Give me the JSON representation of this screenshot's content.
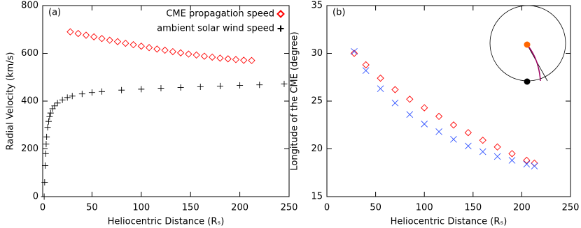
{
  "chart_data": [
    {
      "type": "scatter",
      "panel_label": "(a)",
      "xlabel": "Heliocentric Distance (Rₛ)",
      "ylabel": "Radial Velocity (km/s)",
      "xlim": [
        0,
        250
      ],
      "xticks": [
        0,
        50,
        100,
        150,
        200,
        250
      ],
      "ylim": [
        0,
        800
      ],
      "yticks": [
        0,
        200,
        400,
        600,
        800
      ],
      "legend": "upper right",
      "series": [
        {
          "name": "CME propagation speed",
          "color": "#ff0000",
          "marker": "diamond",
          "x": [
            28,
            36,
            44,
            52,
            60,
            68,
            76,
            84,
            92,
            100,
            108,
            116,
            124,
            132,
            140,
            148,
            156,
            164,
            172,
            180,
            188,
            196,
            204,
            212
          ],
          "values": [
            690,
            683,
            676,
            669,
            662,
            655,
            649,
            642,
            636,
            630,
            624,
            618,
            613,
            607,
            602,
            597,
            593,
            588,
            584,
            580,
            577,
            574,
            571,
            570
          ]
        },
        {
          "name": "ambient solar wind speed",
          "color": "#000000",
          "marker": "plus",
          "x": [
            1.5,
            2,
            2.5,
            3,
            3.5,
            4,
            5,
            6,
            7,
            8,
            10,
            12,
            15,
            20,
            25,
            30,
            40,
            50,
            60,
            80,
            100,
            120,
            140,
            160,
            180,
            200,
            220,
            245
          ],
          "values": [
            0,
            60,
            130,
            180,
            220,
            250,
            290,
            315,
            335,
            350,
            368,
            380,
            392,
            405,
            415,
            421,
            430,
            436,
            440,
            446,
            450,
            454,
            457,
            460,
            463,
            466,
            468,
            472
          ]
        }
      ]
    },
    {
      "type": "scatter",
      "panel_label": "(b)",
      "xlabel": "Heliocentric Distance (Rₛ)",
      "ylabel": "Longitude of the CME (degree)",
      "xlim": [
        0,
        250
      ],
      "xticks": [
        0,
        50,
        100,
        150,
        200,
        250
      ],
      "ylim": [
        15,
        35
      ],
      "yticks": [
        15,
        20,
        25,
        30,
        35
      ],
      "series": [
        {
          "color": "#ff0000",
          "marker": "diamond",
          "x": [
            28,
            40,
            55,
            70,
            85,
            100,
            115,
            130,
            145,
            160,
            175,
            190,
            205,
            213
          ],
          "values": [
            30.0,
            28.8,
            27.4,
            26.2,
            25.2,
            24.3,
            23.4,
            22.5,
            21.7,
            20.9,
            20.2,
            19.5,
            18.8,
            18.5
          ]
        },
        {
          "color": "#3355ff",
          "marker": "cross",
          "x": [
            28,
            40,
            55,
            70,
            85,
            100,
            115,
            130,
            145,
            160,
            175,
            190,
            205,
            213
          ],
          "values": [
            30.2,
            28.2,
            26.3,
            24.8,
            23.6,
            22.6,
            21.8,
            21.0,
            20.3,
            19.7,
            19.2,
            18.8,
            18.4,
            18.2
          ]
        }
      ]
    }
  ]
}
